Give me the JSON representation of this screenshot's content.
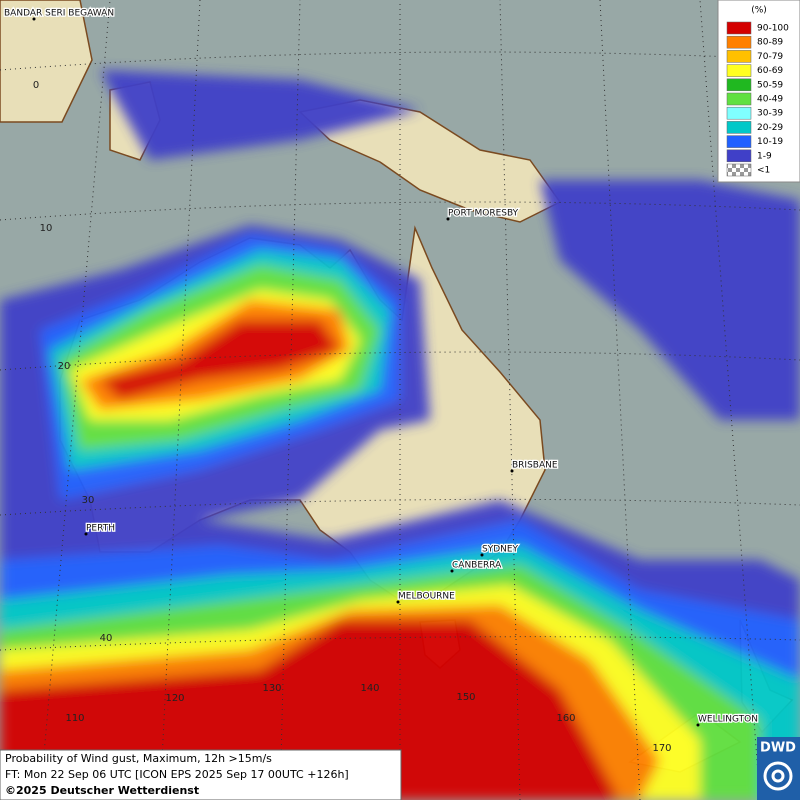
{
  "legend": {
    "title": "(%)",
    "items": [
      {
        "label": "90-100",
        "color": "#d40000"
      },
      {
        "label": "80-89",
        "color": "#ff8000"
      },
      {
        "label": "70-79",
        "color": "#ffc000"
      },
      {
        "label": "60-69",
        "color": "#ffff20"
      },
      {
        "label": "50-59",
        "color": "#20b820"
      },
      {
        "label": "40-49",
        "color": "#60e040"
      },
      {
        "label": "30-39",
        "color": "#80ffff"
      },
      {
        "label": "20-29",
        "color": "#00c8c8"
      },
      {
        "label": "10-19",
        "color": "#2060ff"
      },
      {
        "label": "1-9",
        "color": "#4040c8"
      },
      {
        "label": "<1",
        "color": "#b8b8b8"
      }
    ]
  },
  "places": [
    "BANDAR SERI BEGAWAN",
    "PORT MORESBY",
    "BRISBANE",
    "PERTH",
    "SYDNEY",
    "CANBERRA",
    "MELBOURNE",
    "WELLINGTON"
  ],
  "latitudes": [
    0,
    10,
    20,
    30,
    40
  ],
  "longitudes": [
    110,
    120,
    130,
    140,
    150,
    160,
    170
  ],
  "footer": [
    "Probability of Wind gust, Maximum, 12h >15m/s",
    "FT: Mon 22 Sep 06 UTC [ICON EPS 2025 Sep 17 00UTC +126h]",
    "©2025 Deutscher Wetterdienst"
  ],
  "logo": "DWD"
}
